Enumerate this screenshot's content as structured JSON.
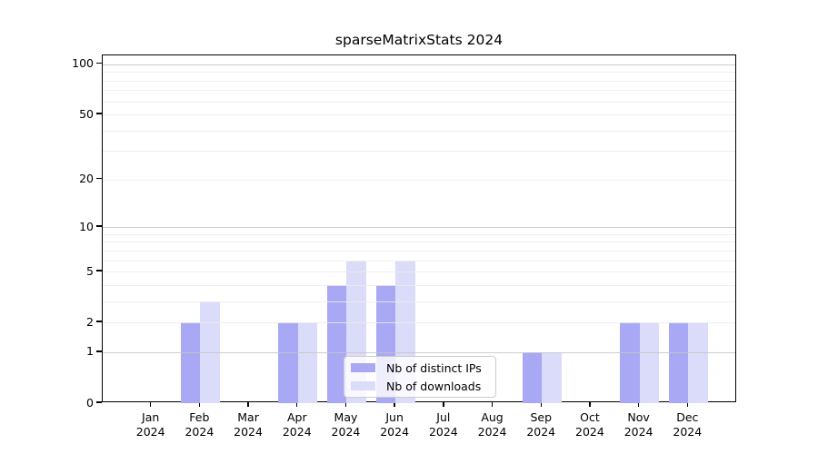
{
  "title": "sparseMatrixStats 2024",
  "chart_data": {
    "type": "bar",
    "categories": [
      "Jan",
      "Feb",
      "Mar",
      "Apr",
      "May",
      "Jun",
      "Jul",
      "Aug",
      "Sep",
      "Oct",
      "Nov",
      "Dec"
    ],
    "year_label": "2024",
    "series": [
      {
        "name": "Nb of distinct IPs",
        "color": "#a8a8f5",
        "values": [
          0,
          2,
          0,
          2,
          4,
          4,
          0,
          0,
          1,
          0,
          2,
          2
        ]
      },
      {
        "name": "Nb of downloads",
        "color": "#dbdbfa",
        "values": [
          0,
          3,
          0,
          2,
          6,
          6,
          0,
          0,
          1,
          0,
          2,
          2
        ]
      }
    ],
    "yscale": "log1p",
    "ylim": [
      0,
      113
    ],
    "y_major_ticks": [
      0,
      1,
      2,
      5,
      10,
      20,
      50,
      100
    ],
    "y_decade_ticks": [
      1,
      10,
      100
    ],
    "y_minor_ticks": [
      3,
      4,
      6,
      7,
      8,
      9,
      30,
      40,
      60,
      70,
      80,
      90
    ],
    "grid": "horizontal",
    "legend_position": "lower center"
  },
  "colors": {
    "background": "#ffffff",
    "spine": "#000000",
    "grid_decade": "#c6c6c6",
    "grid_light": "#ececec",
    "legend_border": "#cccccc",
    "text": "#000000"
  }
}
